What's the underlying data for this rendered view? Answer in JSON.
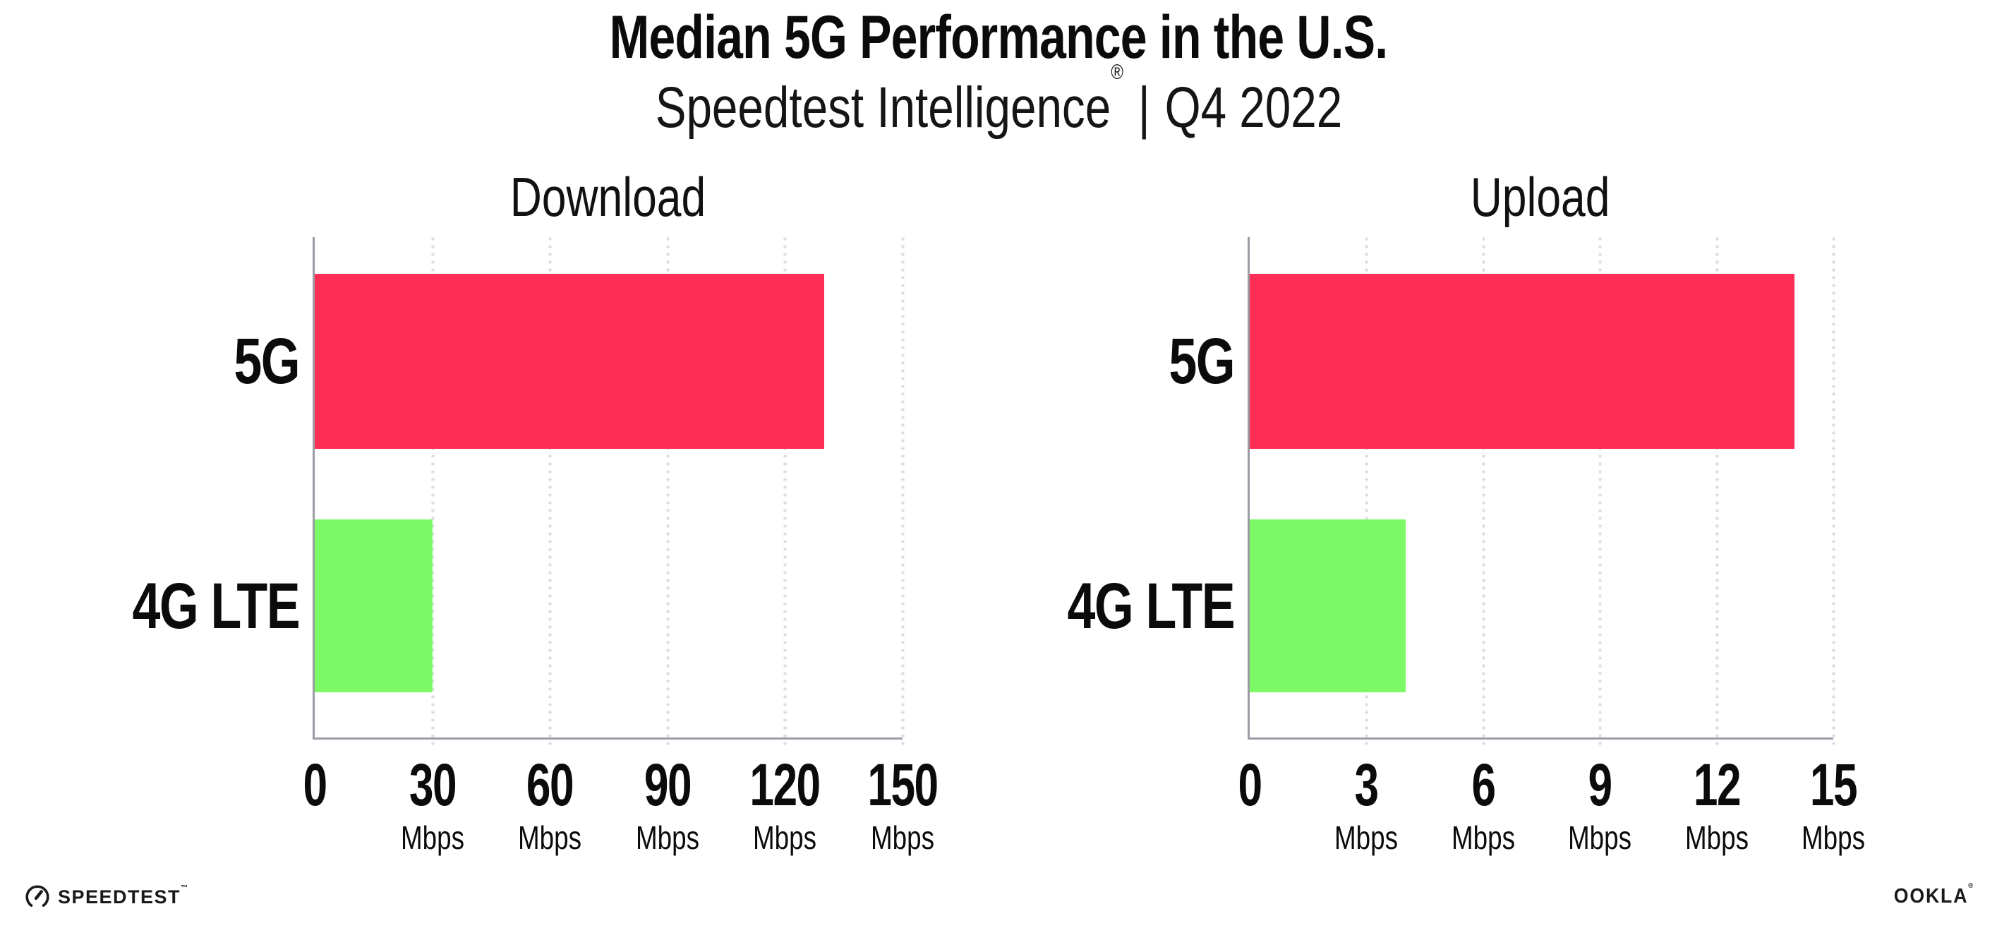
{
  "title": "Median 5G Performance in the U.S.",
  "subtitle": {
    "brand": "Speedtest Intelligence",
    "registered": "®",
    "divider": "|",
    "period": "Q4 2022"
  },
  "footer": {
    "speedtest_label": "SPEEDTEST",
    "speedtest_tm": "™",
    "ookla_label": "OOKLA",
    "ookla_reg": "®"
  },
  "colors": {
    "bar_5g": "#FF2E56",
    "bar_4g_lte": "#7CFA66",
    "axis": "#9B9BA4",
    "gridline_dot": "#DEDEE9",
    "text": "#0B0B0B"
  },
  "chart_data": [
    {
      "type": "bar",
      "orientation": "horizontal",
      "title": "Download",
      "categories": [
        "5G",
        "4G LTE"
      ],
      "values": [
        130,
        30
      ],
      "unit": "Mbps",
      "xlim": [
        0,
        150
      ],
      "xticks": [
        0,
        30,
        60,
        90,
        120,
        150
      ],
      "bar_colors": [
        "#FF2E56",
        "#7CFA66"
      ],
      "grid": "dotted-vertical",
      "legend": "none"
    },
    {
      "type": "bar",
      "orientation": "horizontal",
      "title": "Upload",
      "categories": [
        "5G",
        "4G LTE"
      ],
      "values": [
        14,
        4
      ],
      "unit": "Mbps",
      "xlim": [
        0,
        15
      ],
      "xticks": [
        0,
        3,
        6,
        9,
        12,
        15
      ],
      "bar_colors": [
        "#FF2E56",
        "#7CFA66"
      ],
      "grid": "dotted-vertical",
      "legend": "none"
    }
  ]
}
